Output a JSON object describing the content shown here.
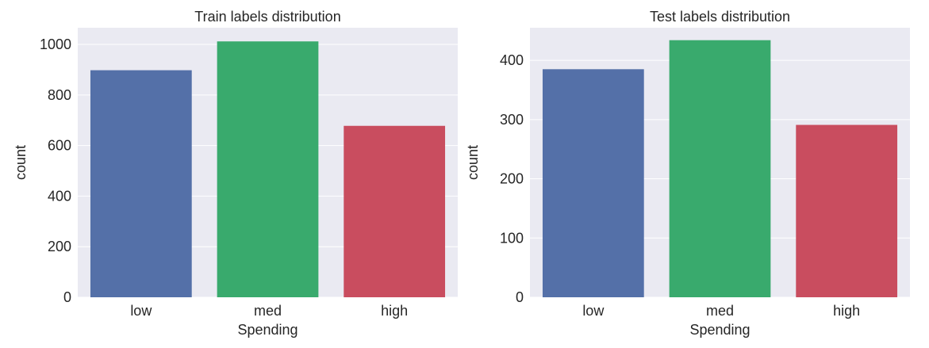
{
  "chart_data": [
    {
      "type": "bar",
      "title": "Train labels distribution",
      "xlabel": "Spending",
      "ylabel": "count",
      "categories": [
        "low",
        "med",
        "high"
      ],
      "values": [
        898,
        1012,
        678
      ],
      "ylim": [
        0,
        1066
      ],
      "yticks": [
        0,
        200,
        400,
        600,
        800,
        1000
      ],
      "grid": true,
      "bar_colors": [
        "#5470a8",
        "#39aa6d",
        "#c94d5f"
      ],
      "background": "#eaeaf2"
    },
    {
      "type": "bar",
      "title": "Test labels distribution",
      "xlabel": "Spending",
      "ylabel": "count",
      "categories": [
        "low",
        "med",
        "high"
      ],
      "values": [
        385,
        434,
        291
      ],
      "ylim": [
        0,
        455
      ],
      "yticks": [
        0,
        100,
        200,
        300,
        400
      ],
      "grid": true,
      "bar_colors": [
        "#5470a8",
        "#39aa6d",
        "#c94d5f"
      ],
      "background": "#eaeaf2"
    }
  ]
}
